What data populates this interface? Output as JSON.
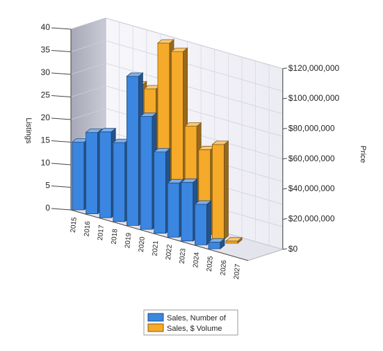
{
  "chart_data": {
    "type": "bar",
    "view": "3d-clustered-depth",
    "categories": [
      "2015",
      "2016",
      "2017",
      "2018",
      "2019",
      "2020",
      "2021",
      "2022",
      "2023",
      "2024",
      "2025",
      "2026",
      "2027"
    ],
    "series": [
      {
        "name": "Sales, Number of",
        "axis": "left",
        "color": "#3a86e0",
        "values": [
          15,
          18,
          19,
          17.5,
          33,
          25,
          18,
          12,
          13,
          9,
          1.5,
          null,
          null
        ]
      },
      {
        "name": "Sales, $ Volume",
        "axis": "right",
        "color": "#f5aa2a",
        "values": [
          null,
          null,
          null,
          87000000,
          87000000,
          120000000,
          117000000,
          70000000,
          57000000,
          63000000,
          1500000,
          null,
          null
        ]
      }
    ],
    "y_left": {
      "label": "Listings",
      "min": 0,
      "max": 40,
      "ticks": [
        "0",
        "5",
        "10",
        "15",
        "20",
        "25",
        "30",
        "35",
        "40"
      ]
    },
    "y_right": {
      "label": "Price",
      "min": 0,
      "max": 120000000,
      "ticks": [
        "$0",
        "$20,000,000",
        "$40,000,000",
        "$60,000,000",
        "$80,000,000",
        "$100,000,000",
        "$120,000,000"
      ]
    },
    "grid": true,
    "legend": {
      "placement": "bottom-center",
      "items": [
        {
          "label": "Sales, Number of",
          "color": "#3a86e0"
        },
        {
          "label": "Sales, $ Volume",
          "color": "#f5aa2a"
        }
      ]
    }
  }
}
